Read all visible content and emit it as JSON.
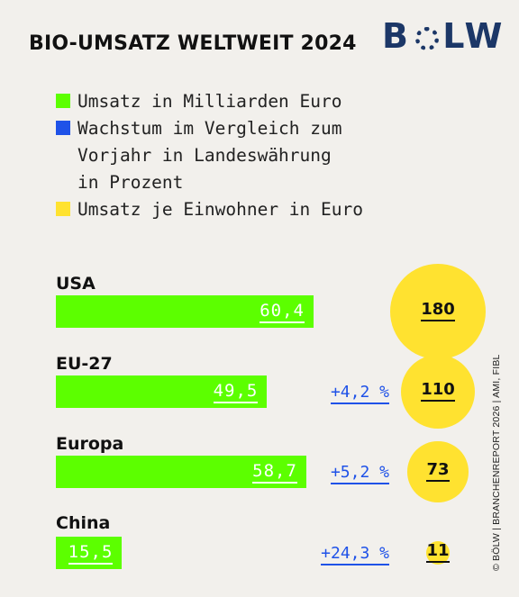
{
  "title": "BIO-UMSATZ WELTWEIT 2024",
  "logo": {
    "b": "B",
    "o": "O",
    "rest": "LW"
  },
  "legend": [
    {
      "label": "Umsatz in Milliarden Euro",
      "color": "#5cff00"
    },
    {
      "label": "Wachstum im Vergleich zum\nVorjahr in Landeswährung\nin Prozent",
      "color": "#1f52e8"
    },
    {
      "label": "Umsatz je Einwohner in Euro",
      "color": "#ffe230"
    }
  ],
  "chart_data": {
    "type": "bar",
    "categories": [
      "USA",
      "EU-27",
      "Europa",
      "China"
    ],
    "series": [
      {
        "name": "Umsatz in Milliarden Euro",
        "values": [
          60.4,
          49.5,
          58.7,
          15.5
        ],
        "labels": [
          "60,4",
          "49,5",
          "58,7",
          "15,5"
        ]
      },
      {
        "name": "Wachstum im Vergleich zum Vorjahr in Landeswährung in Prozent",
        "values": [
          null,
          4.2,
          5.2,
          24.3
        ],
        "labels": [
          "",
          "+4,2 %",
          "+5,2 %",
          "+24,3 %"
        ]
      },
      {
        "name": "Umsatz je Einwohner in Euro",
        "values": [
          180,
          110,
          73,
          11
        ],
        "labels": [
          "180",
          "110",
          "73",
          "11"
        ]
      }
    ],
    "colors": {
      "revenue": "#5cff00",
      "growth": "#1f52e8",
      "per_capita": "#ffe230"
    }
  },
  "source": "© BÖLW | BRANCHENREPORT 2026 | AMI, FIBL"
}
